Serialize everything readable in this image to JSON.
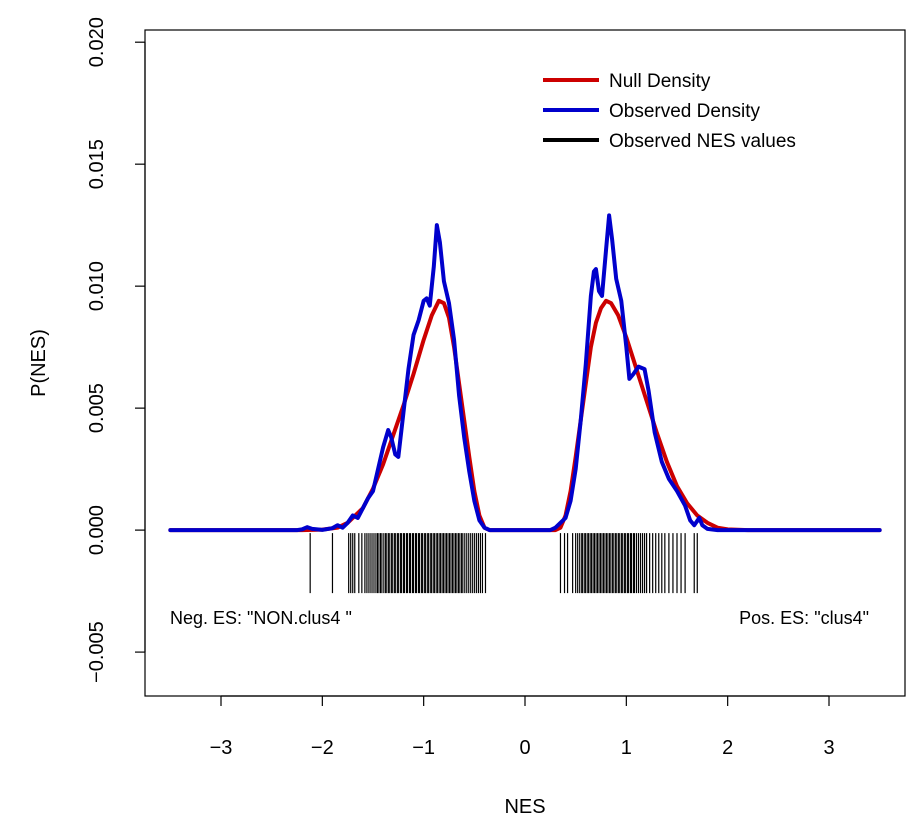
{
  "chart_data": {
    "type": "line",
    "xlabel": "NES",
    "ylabel": "P(NES)",
    "xlim": [
      -3.75,
      3.75
    ],
    "ylim": [
      -0.0068,
      0.0205
    ],
    "x_ticks": [
      "−3",
      "−2",
      "−1",
      "0",
      "1",
      "2",
      "3"
    ],
    "x_tick_values": [
      -3,
      -2,
      -1,
      0,
      1,
      2,
      3
    ],
    "y_ticks": [
      "−0.005",
      "0.000",
      "0.005",
      "0.010",
      "0.015",
      "0.020"
    ],
    "y_tick_values": [
      -0.005,
      0,
      0.005,
      0.01,
      0.015,
      0.02
    ],
    "legend_position": "top-right",
    "legend": [
      {
        "label": "Null Density",
        "color": "#cc0000"
      },
      {
        "label": "Observed Density",
        "color": "#0000cc"
      },
      {
        "label": "Observed NES values",
        "color": "#000000"
      }
    ],
    "annotations": {
      "left": "Neg. ES: \"NON.clus4 \"",
      "right": "Pos. ES: \"clus4\""
    },
    "series": [
      {
        "name": "Null Density",
        "color": "#cc0000",
        "points": [
          [
            -3.5,
            0
          ],
          [
            -2.2,
            0
          ],
          [
            -2.0,
            2e-05
          ],
          [
            -1.85,
            0.0001
          ],
          [
            -1.75,
            0.0003
          ],
          [
            -1.6,
            0.0009
          ],
          [
            -1.5,
            0.0017
          ],
          [
            -1.4,
            0.0027
          ],
          [
            -1.3,
            0.0039
          ],
          [
            -1.2,
            0.0051
          ],
          [
            -1.1,
            0.0064
          ],
          [
            -1.0,
            0.0078
          ],
          [
            -0.92,
            0.0088
          ],
          [
            -0.85,
            0.0094
          ],
          [
            -0.8,
            0.0093
          ],
          [
            -0.75,
            0.0087
          ],
          [
            -0.7,
            0.0075
          ],
          [
            -0.65,
            0.006
          ],
          [
            -0.6,
            0.0045
          ],
          [
            -0.55,
            0.003
          ],
          [
            -0.5,
            0.0016
          ],
          [
            -0.45,
            0.0006
          ],
          [
            -0.4,
            0.0001
          ],
          [
            -0.35,
            0
          ],
          [
            0.3,
            0
          ],
          [
            0.35,
            0.0001
          ],
          [
            0.4,
            0.0006
          ],
          [
            0.45,
            0.0016
          ],
          [
            0.5,
            0.003
          ],
          [
            0.55,
            0.0045
          ],
          [
            0.6,
            0.006
          ],
          [
            0.65,
            0.0075
          ],
          [
            0.7,
            0.0085
          ],
          [
            0.75,
            0.0091
          ],
          [
            0.8,
            0.0094
          ],
          [
            0.85,
            0.0093
          ],
          [
            0.92,
            0.0088
          ],
          [
            1.0,
            0.0079
          ],
          [
            1.1,
            0.0066
          ],
          [
            1.2,
            0.0053
          ],
          [
            1.3,
            0.004
          ],
          [
            1.4,
            0.0028
          ],
          [
            1.5,
            0.0018
          ],
          [
            1.6,
            0.0011
          ],
          [
            1.7,
            0.0006
          ],
          [
            1.8,
            0.0003
          ],
          [
            1.9,
            0.0001
          ],
          [
            2.0,
            3e-05
          ],
          [
            2.2,
            0
          ],
          [
            3.5,
            0
          ]
        ]
      },
      {
        "name": "Observed Density",
        "color": "#0000cc",
        "points": [
          [
            -3.5,
            0
          ],
          [
            -2.25,
            0
          ],
          [
            -2.2,
            3e-05
          ],
          [
            -2.15,
            0.00012
          ],
          [
            -2.1,
            5e-05
          ],
          [
            -2.0,
            1e-05
          ],
          [
            -1.9,
            8e-05
          ],
          [
            -1.85,
            0.0002
          ],
          [
            -1.8,
            0.0001
          ],
          [
            -1.75,
            0.0003
          ],
          [
            -1.7,
            0.0006
          ],
          [
            -1.65,
            0.0005
          ],
          [
            -1.6,
            0.0009
          ],
          [
            -1.55,
            0.0013
          ],
          [
            -1.5,
            0.0016
          ],
          [
            -1.45,
            0.0025
          ],
          [
            -1.4,
            0.0034
          ],
          [
            -1.35,
            0.0041
          ],
          [
            -1.32,
            0.0038
          ],
          [
            -1.28,
            0.0031
          ],
          [
            -1.25,
            0.003
          ],
          [
            -1.2,
            0.0048
          ],
          [
            -1.15,
            0.0066
          ],
          [
            -1.1,
            0.008
          ],
          [
            -1.05,
            0.0086
          ],
          [
            -1.0,
            0.0094
          ],
          [
            -0.97,
            0.0095
          ],
          [
            -0.94,
            0.0092
          ],
          [
            -0.9,
            0.0108
          ],
          [
            -0.87,
            0.0125
          ],
          [
            -0.84,
            0.0118
          ],
          [
            -0.8,
            0.0102
          ],
          [
            -0.75,
            0.0093
          ],
          [
            -0.7,
            0.0078
          ],
          [
            -0.65,
            0.0055
          ],
          [
            -0.6,
            0.0038
          ],
          [
            -0.55,
            0.0024
          ],
          [
            -0.5,
            0.0012
          ],
          [
            -0.45,
            0.0004
          ],
          [
            -0.4,
            0.0001
          ],
          [
            -0.35,
            0
          ],
          [
            0.25,
            0
          ],
          [
            0.3,
            0.0001
          ],
          [
            0.35,
            0.0003
          ],
          [
            0.4,
            0.0005
          ],
          [
            0.45,
            0.0012
          ],
          [
            0.5,
            0.0025
          ],
          [
            0.55,
            0.0045
          ],
          [
            0.6,
            0.0068
          ],
          [
            0.65,
            0.0096
          ],
          [
            0.68,
            0.0106
          ],
          [
            0.7,
            0.0107
          ],
          [
            0.73,
            0.0098
          ],
          [
            0.76,
            0.0096
          ],
          [
            0.8,
            0.0115
          ],
          [
            0.83,
            0.0129
          ],
          [
            0.86,
            0.0119
          ],
          [
            0.9,
            0.0103
          ],
          [
            0.95,
            0.0094
          ],
          [
            1.0,
            0.0075
          ],
          [
            1.03,
            0.0062
          ],
          [
            1.07,
            0.0064
          ],
          [
            1.12,
            0.0067
          ],
          [
            1.18,
            0.0066
          ],
          [
            1.22,
            0.0057
          ],
          [
            1.28,
            0.004
          ],
          [
            1.35,
            0.0028
          ],
          [
            1.42,
            0.0021
          ],
          [
            1.5,
            0.0016
          ],
          [
            1.58,
            0.001
          ],
          [
            1.63,
            0.0004
          ],
          [
            1.67,
            0.0002
          ],
          [
            1.72,
            0.0005
          ],
          [
            1.75,
            0.0002
          ],
          [
            1.8,
            5e-05
          ],
          [
            1.9,
            0
          ],
          [
            3.5,
            0
          ]
        ]
      }
    ],
    "rug": {
      "name": "Observed NES values",
      "color": "#000000",
      "values": [
        -2.12,
        -1.9,
        -1.74,
        -1.72,
        -1.7,
        -1.68,
        -1.64,
        -1.61,
        -1.58,
        -1.56,
        -1.54,
        -1.52,
        -1.5,
        -1.48,
        -1.46,
        -1.45,
        -1.43,
        -1.42,
        -1.4,
        -1.38,
        -1.37,
        -1.35,
        -1.34,
        -1.32,
        -1.31,
        -1.29,
        -1.28,
        -1.26,
        -1.25,
        -1.23,
        -1.22,
        -1.2,
        -1.19,
        -1.17,
        -1.16,
        -1.14,
        -1.13,
        -1.11,
        -1.1,
        -1.08,
        -1.07,
        -1.05,
        -1.04,
        -1.02,
        -1.01,
        -0.99,
        -0.98,
        -0.96,
        -0.95,
        -0.93,
        -0.92,
        -0.9,
        -0.89,
        -0.87,
        -0.86,
        -0.84,
        -0.83,
        -0.81,
        -0.8,
        -0.78,
        -0.77,
        -0.75,
        -0.74,
        -0.72,
        -0.71,
        -0.69,
        -0.68,
        -0.66,
        -0.65,
        -0.63,
        -0.62,
        -0.6,
        -0.58,
        -0.56,
        -0.54,
        -0.52,
        -0.5,
        -0.48,
        -0.46,
        -0.44,
        -0.42,
        -0.39,
        0.35,
        0.39,
        0.42,
        0.47,
        0.5,
        0.52,
        0.54,
        0.56,
        0.57,
        0.59,
        0.6,
        0.62,
        0.63,
        0.65,
        0.66,
        0.68,
        0.69,
        0.71,
        0.72,
        0.74,
        0.75,
        0.77,
        0.78,
        0.8,
        0.81,
        0.83,
        0.84,
        0.86,
        0.87,
        0.89,
        0.9,
        0.92,
        0.93,
        0.95,
        0.96,
        0.98,
        0.99,
        1.01,
        1.02,
        1.04,
        1.05,
        1.07,
        1.08,
        1.1,
        1.12,
        1.14,
        1.16,
        1.18,
        1.2,
        1.23,
        1.26,
        1.29,
        1.32,
        1.35,
        1.38,
        1.42,
        1.46,
        1.5,
        1.54,
        1.58,
        1.67,
        1.7
      ]
    }
  }
}
